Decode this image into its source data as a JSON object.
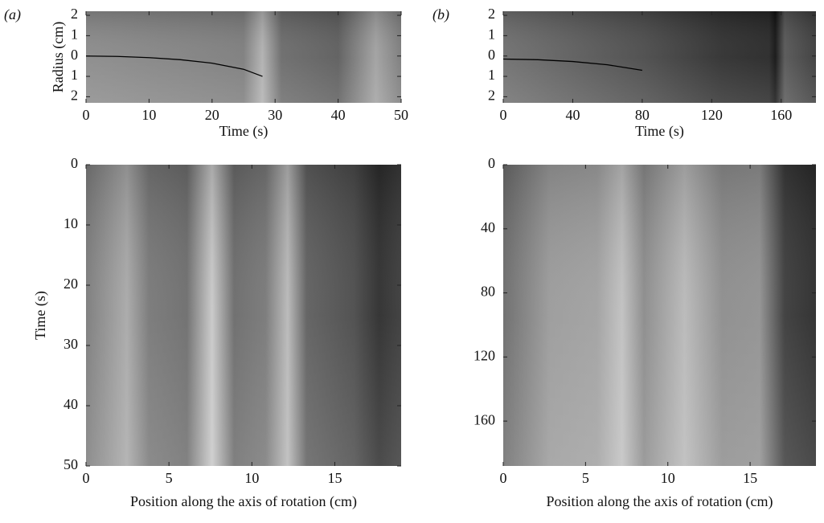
{
  "chart_data": [
    {
      "type": "image",
      "panel_label": "(a)",
      "x_label": "Time (s)",
      "y_label": "Radius (cm)",
      "xlim": [
        0,
        50
      ],
      "xticks": [
        0,
        10,
        20,
        30,
        40,
        50
      ],
      "ylim": [
        -2.3,
        2.2
      ],
      "yticks": [
        2,
        1,
        0,
        {
          "value": -1,
          "label": "1"
        },
        {
          "value": -2,
          "label": "2"
        }
      ],
      "series": [
        {
          "color": "#000000",
          "x": [
            0,
            5,
            10,
            15,
            20,
            25,
            28
          ],
          "values": [
            0,
            -0.02,
            -0.08,
            -0.18,
            -0.35,
            -0.65,
            -1.0
          ]
        }
      ]
    },
    {
      "type": "image",
      "panel_label": "(b)",
      "x_label": "Time (s)",
      "xlim": [
        0,
        180
      ],
      "xticks": [
        0,
        40,
        80,
        120,
        160
      ],
      "ylim": [
        -2.3,
        2.2
      ],
      "yticks": [
        2,
        1,
        0,
        {
          "value": -1,
          "label": "1"
        },
        {
          "value": -2,
          "label": "2"
        }
      ],
      "series": [
        {
          "color": "#000000",
          "x": [
            0,
            20,
            40,
            60,
            80
          ],
          "values": [
            -0.15,
            -0.18,
            -0.27,
            -0.43,
            -0.7
          ]
        }
      ]
    },
    {
      "type": "image",
      "x_label": "Position along the axis of rotation (cm)",
      "y_label": "Time (s)",
      "xlim": [
        0,
        19
      ],
      "xticks": [
        0,
        5,
        10,
        15
      ],
      "ylim": [
        0,
        50
      ],
      "yticks": [
        0,
        10,
        20,
        30,
        40,
        50
      ],
      "y_inverted": true
    },
    {
      "type": "image",
      "x_label": "Position along the axis of rotation (cm)",
      "xlim": [
        0,
        19
      ],
      "xticks": [
        0,
        5,
        10,
        15
      ],
      "ylim": [
        0,
        188
      ],
      "yticks": [
        0,
        40,
        80,
        120,
        160
      ],
      "y_inverted": true
    }
  ]
}
